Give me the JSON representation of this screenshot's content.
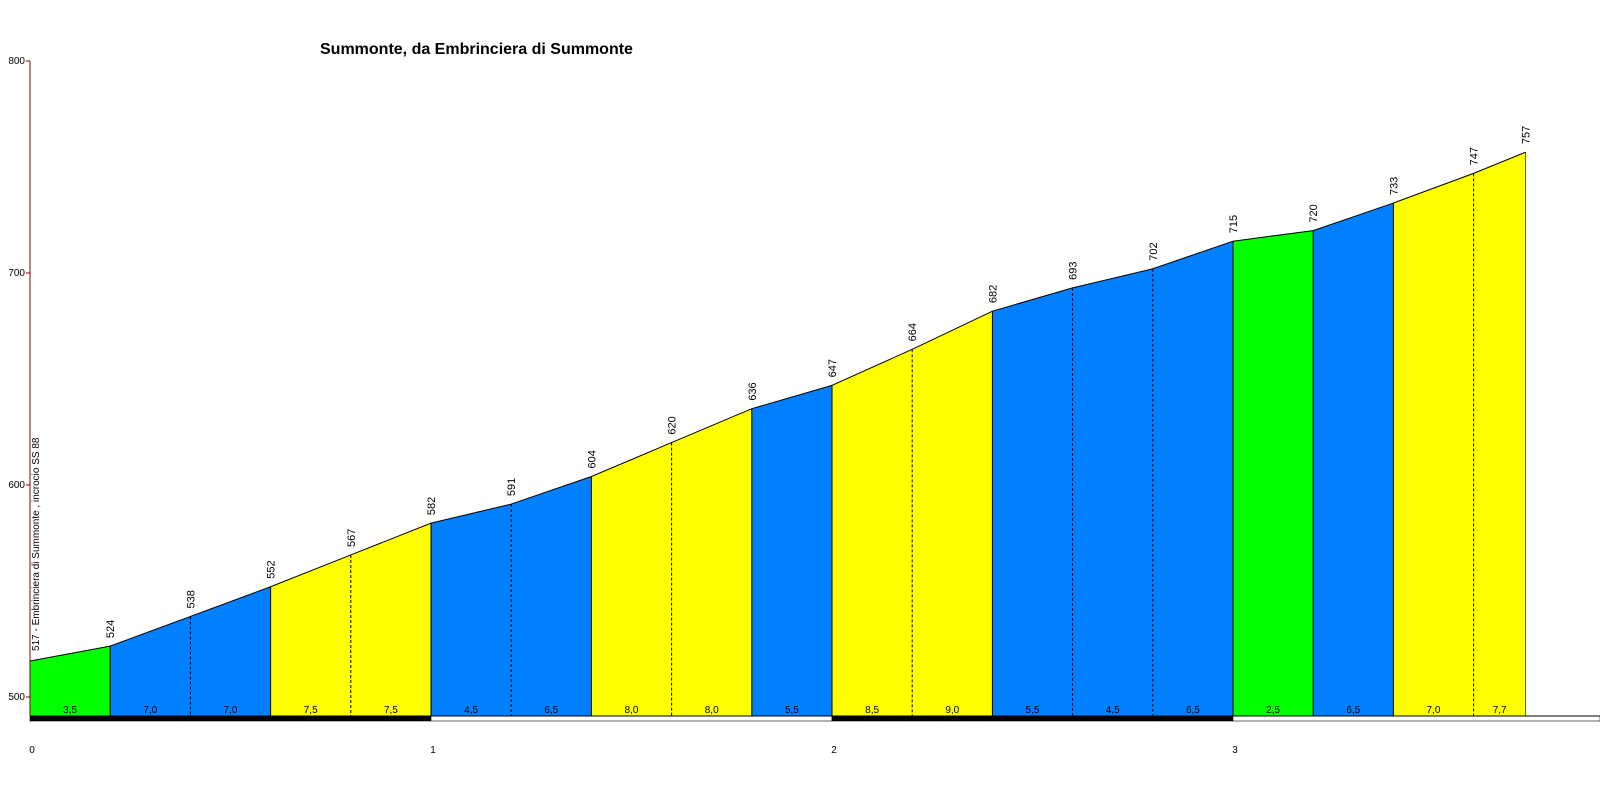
{
  "chart_data": {
    "type": "area",
    "title": "Summonte, da Embrinciera di Summonte",
    "xlabel": "",
    "ylabel": "",
    "ylim": [
      490,
      800
    ],
    "xlim": [
      0,
      3.85
    ],
    "y_ticks": [
      "800",
      "700",
      "600",
      "500"
    ],
    "x_ticks": [
      "0",
      "1",
      "2",
      "3"
    ],
    "start_label": "517 - Embrinciera di Summonte , incrocio SS 88",
    "points": [
      {
        "x": 0.0,
        "y": 517
      },
      {
        "x": 0.2,
        "y": 524,
        "label": "524"
      },
      {
        "x": 0.4,
        "y": 538,
        "label": "538"
      },
      {
        "x": 0.6,
        "y": 552,
        "label": "552"
      },
      {
        "x": 0.8,
        "y": 567,
        "label": "567"
      },
      {
        "x": 1.0,
        "y": 582,
        "label": "582"
      },
      {
        "x": 1.2,
        "y": 591,
        "label": "591"
      },
      {
        "x": 1.4,
        "y": 604,
        "label": "604"
      },
      {
        "x": 1.6,
        "y": 620,
        "label": "620"
      },
      {
        "x": 1.8,
        "y": 636,
        "label": "636"
      },
      {
        "x": 2.0,
        "y": 647,
        "label": "647"
      },
      {
        "x": 2.2,
        "y": 664,
        "label": "664"
      },
      {
        "x": 2.4,
        "y": 682,
        "label": "682"
      },
      {
        "x": 2.6,
        "y": 693,
        "label": "693"
      },
      {
        "x": 2.8,
        "y": 702,
        "label": "702"
      },
      {
        "x": 3.0,
        "y": 715,
        "label": "715"
      },
      {
        "x": 3.2,
        "y": 720,
        "label": "720"
      },
      {
        "x": 3.4,
        "y": 733,
        "label": "733"
      },
      {
        "x": 3.6,
        "y": 747,
        "label": "747"
      },
      {
        "x": 3.73,
        "y": 757,
        "label": "757"
      }
    ],
    "segments": [
      {
        "gradient": "3,5",
        "color": "#00ff00"
      },
      {
        "gradient": "7,0",
        "color": "#0080ff"
      },
      {
        "gradient": "7,0",
        "color": "#0080ff"
      },
      {
        "gradient": "7,5",
        "color": "#ffff00"
      },
      {
        "gradient": "7,5",
        "color": "#ffff00"
      },
      {
        "gradient": "4,5",
        "color": "#0080ff"
      },
      {
        "gradient": "6,5",
        "color": "#0080ff"
      },
      {
        "gradient": "8,0",
        "color": "#ffff00"
      },
      {
        "gradient": "8,0",
        "color": "#ffff00"
      },
      {
        "gradient": "5,5",
        "color": "#0080ff"
      },
      {
        "gradient": "8,5",
        "color": "#ffff00"
      },
      {
        "gradient": "9,0",
        "color": "#ffff00"
      },
      {
        "gradient": "5,5",
        "color": "#0080ff"
      },
      {
        "gradient": "4,5",
        "color": "#0080ff"
      },
      {
        "gradient": "6,5",
        "color": "#0080ff"
      },
      {
        "gradient": "2,5",
        "color": "#00ff00"
      },
      {
        "gradient": "6,5",
        "color": "#0080ff"
      },
      {
        "gradient": "7,0",
        "color": "#ffff00"
      },
      {
        "gradient": "7,7",
        "color": "#ffff00"
      }
    ],
    "km_bar_colors": [
      "#000000",
      "#ffffff"
    ],
    "axis_color": "#8b0000"
  }
}
